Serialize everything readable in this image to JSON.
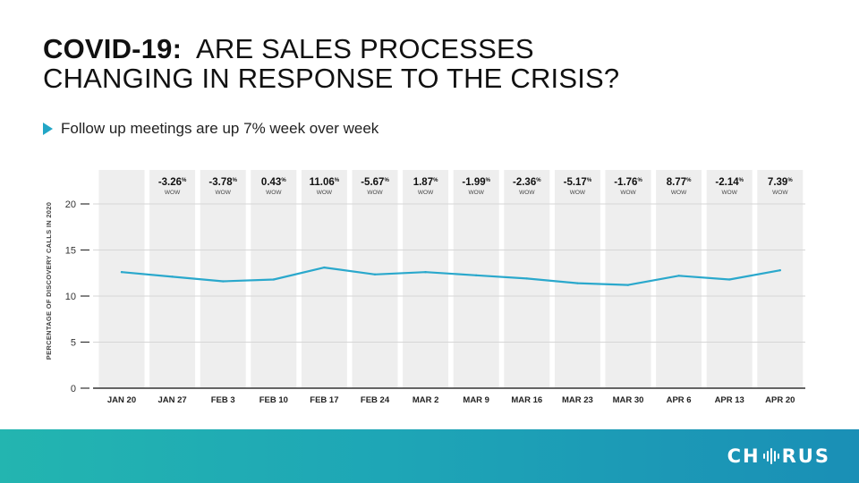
{
  "header": {
    "title_bold": "COVID-19:",
    "title_rest": "ARE SALES PROCESSES",
    "title_line2": "CHANGING IN RESPONSE TO THE CRISIS?"
  },
  "subtitle": "Follow up meetings are up 7% week over week",
  "brand": {
    "logo_left": "CH",
    "logo_right": "RUS",
    "accent": "#22a6c6"
  },
  "chart_data": {
    "type": "line",
    "title": "",
    "xlabel": "",
    "ylabel": "PERCENTAGE OF DISCOVERY CALLS IN 2020",
    "categories": [
      "JAN 20",
      "JAN 27",
      "FEB 3",
      "FEB 10",
      "FEB 17",
      "FEB 24",
      "MAR 2",
      "MAR 9",
      "MAR 16",
      "MAR 23",
      "MAR 30",
      "APR 6",
      "APR 13",
      "APR 20"
    ],
    "series": [
      {
        "values": [
          12.6,
          12.1,
          11.6,
          11.8,
          13.1,
          12.35,
          12.6,
          12.25,
          11.9,
          11.4,
          11.2,
          12.2,
          11.8,
          12.8
        ],
        "color": "#2aa8cc"
      }
    ],
    "wow_labels": [
      "",
      "-3.26",
      "-3.78",
      "0.43",
      "11.06",
      "-5.67",
      "1.87",
      "-1.99",
      "-2.36",
      "-5.17",
      "-1.76",
      "8.77",
      "-2.14",
      "7.39"
    ],
    "wow_suffix": "%",
    "wow_caption": "WOW",
    "ylim": [
      0,
      22
    ],
    "yticks": [
      0,
      5,
      10,
      15,
      20
    ],
    "grid": true
  }
}
